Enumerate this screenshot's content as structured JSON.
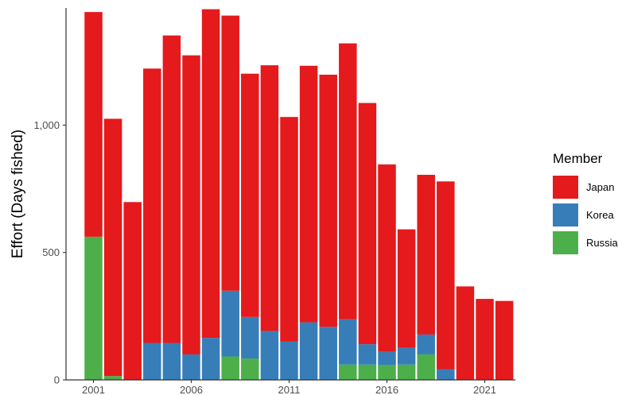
{
  "chart_data": {
    "type": "bar",
    "stacked": true,
    "title": "",
    "xlabel": "",
    "ylabel": "Effort (Days fished)",
    "ylim": [
      0,
      1460
    ],
    "yticks": [
      0,
      500,
      1000
    ],
    "ytick_labels": [
      "0",
      "500",
      "1,000"
    ],
    "xticks": [
      2001,
      2006,
      2011,
      2016,
      2021
    ],
    "xtick_labels": [
      "2001",
      "2006",
      "2011",
      "2016",
      "2021"
    ],
    "categories": [
      2001,
      2002,
      2003,
      2004,
      2005,
      2006,
      2007,
      2008,
      2009,
      2010,
      2011,
      2012,
      2013,
      2014,
      2015,
      2016,
      2017,
      2018,
      2019,
      2020,
      2021,
      2022
    ],
    "series": [
      {
        "name": "Russia",
        "color": "#4DAF4A",
        "values": [
          562,
          15,
          0,
          0,
          0,
          0,
          0,
          92,
          84,
          0,
          0,
          0,
          0,
          60,
          60,
          58,
          60,
          100,
          0,
          0,
          0,
          0
        ]
      },
      {
        "name": "Korea",
        "color": "#377EB8",
        "values": [
          0,
          0,
          0,
          145,
          145,
          100,
          165,
          258,
          163,
          192,
          150,
          226,
          208,
          178,
          80,
          52,
          66,
          78,
          42,
          0,
          0,
          0
        ]
      },
      {
        "name": "Japan",
        "color": "#E41A1C",
        "values": [
          882,
          1010,
          698,
          1077,
          1207,
          1174,
          1290,
          1080,
          955,
          1043,
          882,
          1007,
          990,
          1083,
          947,
          736,
          465,
          627,
          737,
          367,
          318,
          310
        ]
      }
    ],
    "legend": {
      "title": "Member",
      "position": "right",
      "entries": [
        "Japan",
        "Korea",
        "Russia"
      ]
    },
    "grid": false
  }
}
